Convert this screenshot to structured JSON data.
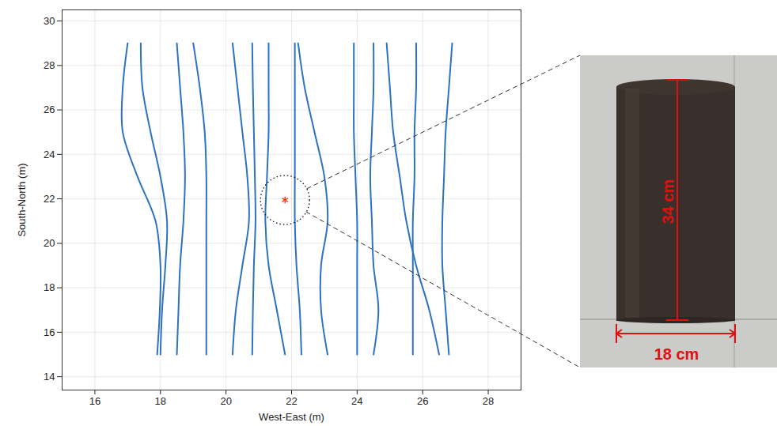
{
  "chart_data": {
    "type": "line",
    "xlabel": "West-East (m)",
    "ylabel": "South-North (m)",
    "xlim": [
      15,
      29
    ],
    "ylim": [
      13.4,
      30.5
    ],
    "xticks": [
      16,
      18,
      20,
      22,
      24,
      26,
      28
    ],
    "yticks": [
      14,
      16,
      18,
      20,
      22,
      24,
      26,
      28,
      30
    ],
    "grid": true,
    "color": "#2c73c0",
    "y": [
      15,
      17,
      19,
      21,
      23,
      25,
      27,
      29
    ],
    "series": [
      {
        "x": [
          17.9,
          17.98,
          18.0,
          17.85,
          17.3,
          16.85,
          16.85,
          17.0
        ]
      },
      {
        "x": [
          18.0,
          18.05,
          18.15,
          18.2,
          18.0,
          17.7,
          17.45,
          17.4
        ]
      },
      {
        "x": [
          18.5,
          18.55,
          18.6,
          18.7,
          18.75,
          18.7,
          18.6,
          18.5
        ]
      },
      {
        "x": [
          19.4,
          19.4,
          19.4,
          19.4,
          19.4,
          19.35,
          19.2,
          19.0
        ]
      },
      {
        "x": [
          20.2,
          20.3,
          20.5,
          20.7,
          20.65,
          20.5,
          20.35,
          20.2
        ]
      },
      {
        "x": [
          20.8,
          20.82,
          20.85,
          20.9,
          20.88,
          20.85,
          20.82,
          20.8
        ]
      },
      {
        "x": [
          21.8,
          21.55,
          21.3,
          21.2,
          21.25,
          21.3,
          21.3,
          21.3
        ]
      },
      {
        "x": [
          22.3,
          22.25,
          22.15,
          22.1,
          22.1,
          22.1,
          22.1,
          22.1
        ]
      },
      {
        "x": [
          23.1,
          22.9,
          22.9,
          23.1,
          23.0,
          22.7,
          22.4,
          22.2
        ]
      },
      {
        "x": [
          24.0,
          24.0,
          24.0,
          24.0,
          23.95,
          23.9,
          23.9,
          23.9
        ]
      },
      {
        "x": [
          24.5,
          24.65,
          24.5,
          24.45,
          24.4,
          24.45,
          24.5,
          24.5
        ]
      },
      {
        "x": [
          26.5,
          26.2,
          25.8,
          25.5,
          25.3,
          25.1,
          25.0,
          24.9
        ]
      },
      {
        "x": [
          25.7,
          25.7,
          25.7,
          25.7,
          25.75,
          25.75,
          25.8,
          25.8
        ]
      },
      {
        "x": [
          26.8,
          26.7,
          26.6,
          26.6,
          26.65,
          26.7,
          26.8,
          26.9
        ]
      }
    ],
    "points": [
      {
        "x": 21.8,
        "y": 21.95,
        "color": "#e8421c",
        "marker": "asterisk"
      }
    ]
  },
  "inset": {
    "height_label": "34 cm",
    "width_label": "18 cm"
  }
}
